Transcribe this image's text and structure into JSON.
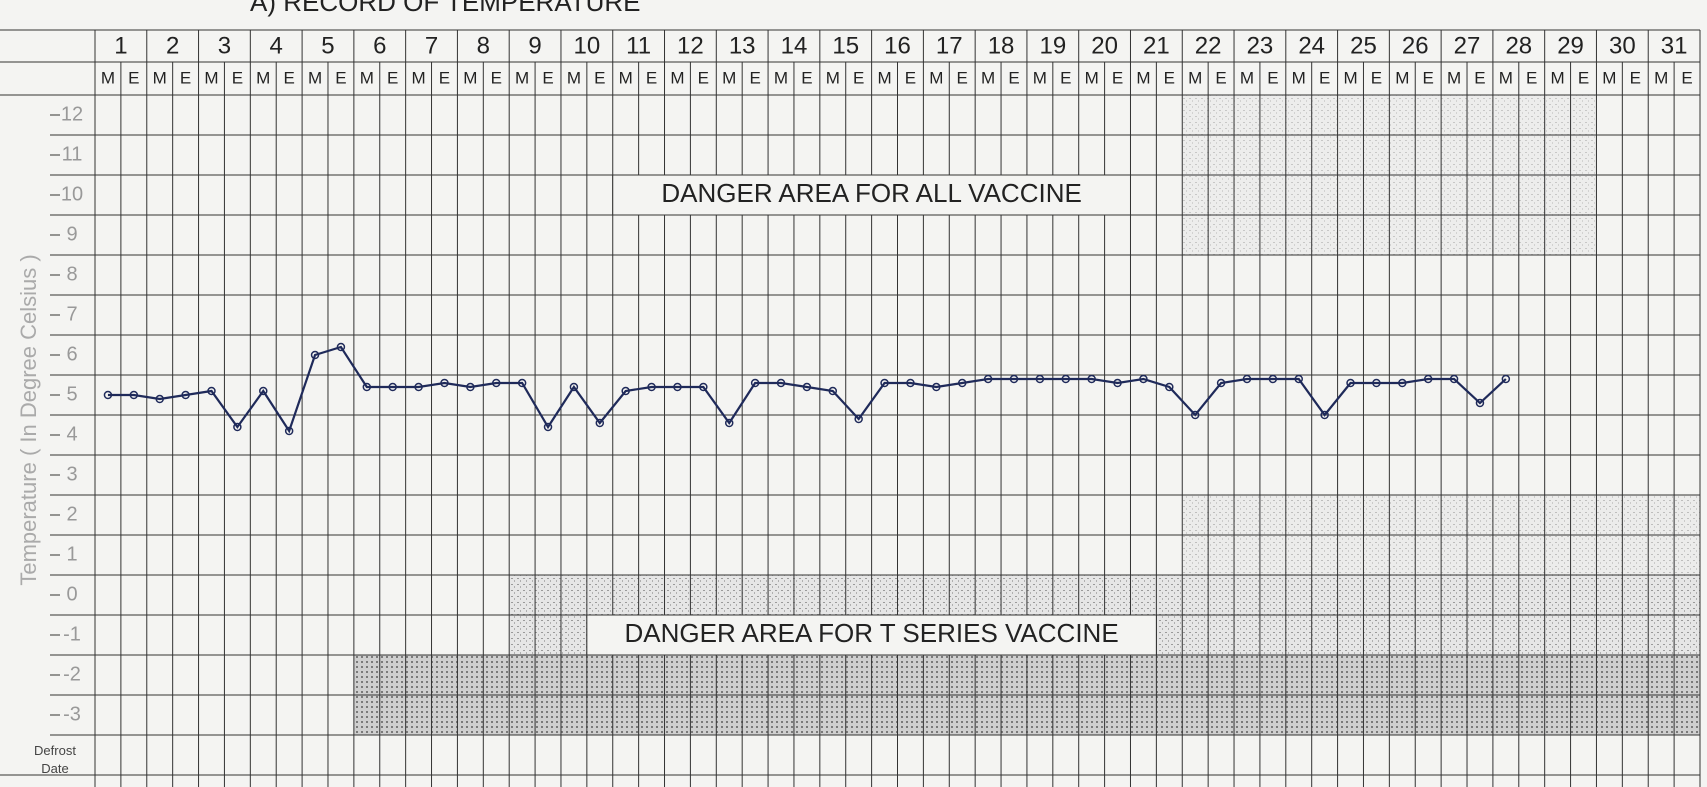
{
  "chart_data": {
    "type": "line",
    "title": "A) RECORD OF TEMPERATURE",
    "y_label": "Temperature ( In Degree Celsius )",
    "bottom_label": "Defrost Date",
    "annotations": [
      "DANGER AREA FOR ALL VACCINE",
      "DANGER AREA FOR T SERIES VACCINE"
    ],
    "categories": [
      1,
      2,
      3,
      4,
      5,
      6,
      7,
      8,
      9,
      10,
      11,
      12,
      13,
      14,
      15,
      16,
      17,
      18,
      19,
      20,
      21,
      22,
      23,
      24,
      25,
      26,
      27,
      28,
      29,
      30,
      31
    ],
    "sessions": [
      "M",
      "E"
    ],
    "values": [
      [
        5.0,
        5.0
      ],
      [
        4.9,
        5.0
      ],
      [
        5.1,
        4.2
      ],
      [
        5.1,
        4.1
      ],
      [
        6.0,
        6.2
      ],
      [
        5.2,
        5.2
      ],
      [
        5.2,
        5.3
      ],
      [
        5.2,
        5.3
      ],
      [
        5.3,
        4.2
      ],
      [
        5.2,
        4.3
      ],
      [
        5.1,
        5.2
      ],
      [
        5.2,
        5.2
      ],
      [
        4.3,
        5.3
      ],
      [
        5.3,
        5.2
      ],
      [
        5.1,
        4.4
      ],
      [
        5.3,
        5.3
      ],
      [
        5.2,
        5.3
      ],
      [
        5.4,
        5.4
      ],
      [
        5.4,
        5.4
      ],
      [
        5.4,
        5.3
      ],
      [
        5.4,
        5.2
      ],
      [
        4.5,
        5.3
      ],
      [
        5.4,
        5.4
      ],
      [
        5.4,
        4.5
      ],
      [
        5.3,
        5.3
      ],
      [
        5.3,
        5.4
      ],
      [
        5.4,
        4.8
      ],
      [
        5.4,
        null
      ],
      [
        null,
        null
      ],
      [
        null,
        null
      ],
      [
        null,
        null
      ]
    ],
    "color": "#1f2a5a",
    "ylim": [
      -3.5,
      12.5
    ],
    "yticks": [
      -3,
      -2,
      -1,
      0,
      1,
      2,
      3,
      4,
      5,
      6,
      7,
      8,
      9,
      10,
      11,
      12
    ]
  }
}
